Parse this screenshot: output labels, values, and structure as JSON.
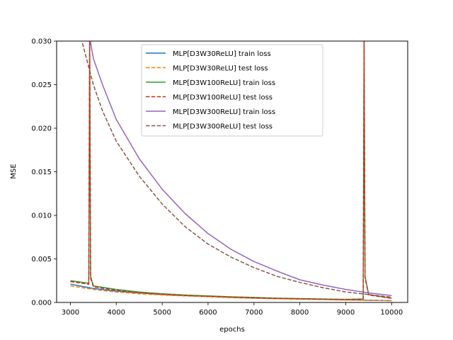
{
  "chart_data": {
    "type": "line",
    "title": "",
    "xlabel": "epochs",
    "ylabel": "MSE",
    "xlim": [
      2700,
      10350
    ],
    "ylim": [
      0,
      0.03
    ],
    "xticks": [
      3000,
      4000,
      5000,
      6000,
      7000,
      8000,
      9000,
      10000
    ],
    "yticks": [
      0.0,
      0.005,
      0.01,
      0.015,
      0.02,
      0.025,
      0.03
    ],
    "ytick_labels": [
      "0.000",
      "0.005",
      "0.010",
      "0.015",
      "0.020",
      "0.025",
      "0.030"
    ],
    "grid": false,
    "legend_position": "top-center",
    "series": [
      {
        "name": "MLP[D3W30ReLU] train loss",
        "color": "#1f77b4",
        "dash": "solid",
        "x": [
          3000,
          3500,
          4000,
          4500,
          5000,
          5500,
          6000,
          6500,
          7000,
          7500,
          8000,
          8500,
          9000,
          9500,
          10000
        ],
        "y": [
          0.0021,
          0.0016,
          0.0013,
          0.0011,
          0.0009,
          0.0008,
          0.0007,
          0.0006,
          0.0005,
          0.00045,
          0.0004,
          0.00035,
          0.0003,
          0.00025,
          0.0002
        ]
      },
      {
        "name": "MLP[D3W30ReLU] test loss",
        "color": "#ff7f0e",
        "dash": "dashed",
        "x": [
          3000,
          3500,
          4000,
          4500,
          5000,
          5500,
          6000,
          6500,
          7000,
          7500,
          8000,
          8500,
          9000,
          9500,
          10000
        ],
        "y": [
          0.0019,
          0.0015,
          0.0012,
          0.001,
          0.00085,
          0.00075,
          0.00065,
          0.00055,
          0.00048,
          0.00042,
          0.00037,
          0.00033,
          0.00028,
          0.00024,
          0.0002
        ]
      },
      {
        "name": "MLP[D3W100ReLU] train loss",
        "color": "#2ca02c",
        "dash": "solid",
        "x": [
          3000,
          3400,
          3420,
          3440,
          3500,
          4000,
          4500,
          5000,
          5500,
          6000,
          6500,
          7000,
          7500,
          8000,
          8500,
          9000,
          9380,
          9400,
          9420,
          9500,
          10000
        ],
        "y": [
          0.0025,
          0.0022,
          0.03,
          0.003,
          0.0019,
          0.0015,
          0.0012,
          0.001,
          0.00085,
          0.00075,
          0.00065,
          0.00058,
          0.0005,
          0.00045,
          0.0004,
          0.00036,
          0.0004,
          0.03,
          0.003,
          0.0009,
          0.0005
        ]
      },
      {
        "name": "MLP[D3W100ReLU] test loss",
        "color": "#d62728",
        "dash": "dashed",
        "x": [
          3000,
          3400,
          3420,
          3440,
          3500,
          4000,
          4500,
          5000,
          5500,
          6000,
          6500,
          7000,
          7500,
          8000,
          8500,
          9000,
          9380,
          9400,
          9420,
          9500,
          10000
        ],
        "y": [
          0.0024,
          0.0021,
          0.03,
          0.0028,
          0.0018,
          0.0014,
          0.0011,
          0.00095,
          0.0008,
          0.0007,
          0.0006,
          0.00054,
          0.00047,
          0.00042,
          0.00037,
          0.00033,
          0.00037,
          0.03,
          0.0028,
          0.00085,
          0.00048
        ]
      },
      {
        "name": "MLP[D3W300ReLU] train loss",
        "color": "#9467bd",
        "dash": "solid",
        "x": [
          3400,
          3500,
          3700,
          4000,
          4500,
          5000,
          5500,
          6000,
          6500,
          7000,
          7500,
          8000,
          8500,
          9000,
          9500,
          10000
        ],
        "y": [
          0.031,
          0.028,
          0.025,
          0.021,
          0.0165,
          0.013,
          0.0102,
          0.0079,
          0.0061,
          0.0047,
          0.0036,
          0.0026,
          0.002,
          0.0015,
          0.0011,
          0.0008
        ]
      },
      {
        "name": "MLP[D3W300ReLU] test loss",
        "color": "#8c564b",
        "dash": "dashed",
        "x": [
          3200,
          3300,
          3500,
          3700,
          4000,
          4500,
          5000,
          5500,
          6000,
          6500,
          7000,
          7500,
          8000,
          8500,
          9000,
          9500,
          10000
        ],
        "y": [
          0.031,
          0.029,
          0.025,
          0.022,
          0.0185,
          0.0145,
          0.0113,
          0.0087,
          0.0067,
          0.0052,
          0.004,
          0.003,
          0.0023,
          0.0017,
          0.0012,
          0.0009,
          0.0006
        ]
      }
    ]
  }
}
